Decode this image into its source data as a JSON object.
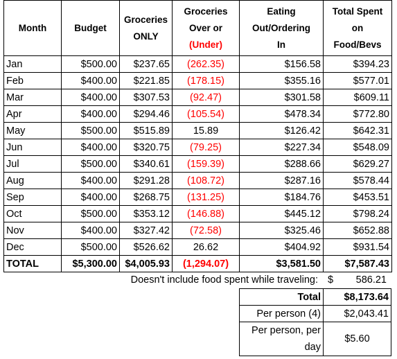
{
  "header": {
    "columns": [
      [
        "Month"
      ],
      [
        "Budget"
      ],
      [
        "Groceries",
        "ONLY"
      ],
      [
        "Groceries",
        "Over or",
        "(Under)"
      ],
      [
        "Eating",
        "Out/Ordering",
        "In"
      ],
      [
        "Total Spent",
        "on",
        "Food/Bevs"
      ]
    ]
  },
  "table": {
    "rows": [
      [
        "Jan",
        "$500.00",
        "$237.65",
        "(262.35)",
        "$156.58",
        "$394.23"
      ],
      [
        "Feb",
        "$400.00",
        "$221.85",
        "(178.15)",
        "$355.16",
        "$577.01"
      ],
      [
        "Mar",
        "$400.00",
        "$307.53",
        "(92.47)",
        "$301.58",
        "$609.11"
      ],
      [
        "Apr",
        "$400.00",
        "$294.46",
        "(105.54)",
        "$478.34",
        "$772.80"
      ],
      [
        "May",
        "$500.00",
        "$515.89",
        "15.89",
        "$126.42",
        "$642.31"
      ],
      [
        "Jun",
        "$400.00",
        "$320.75",
        "(79.25)",
        "$227.34",
        "$548.09"
      ],
      [
        "Jul",
        "$500.00",
        "$340.61",
        "(159.39)",
        "$288.66",
        "$629.27"
      ],
      [
        "Aug",
        "$400.00",
        "$291.28",
        "(108.72)",
        "$287.16",
        "$578.44"
      ],
      [
        "Sep",
        "$400.00",
        "$268.75",
        "(131.25)",
        "$184.76",
        "$453.51"
      ],
      [
        "Oct",
        "$500.00",
        "$353.12",
        "(146.88)",
        "$445.12",
        "$798.24"
      ],
      [
        "Nov",
        "$400.00",
        "$327.42",
        "(72.58)",
        "$325.46",
        "$652.88"
      ],
      [
        "Dec",
        "$500.00",
        "$526.62",
        "26.62",
        "$404.92",
        "$931.54"
      ]
    ],
    "total": [
      "TOTAL",
      "$5,300.00",
      "$4,005.93",
      "(1,294.07)",
      "$3,581.50",
      "$7,587.43"
    ]
  },
  "note": {
    "text": "Doesn't include food spent while traveling:",
    "currency": "$",
    "amount": "586.21"
  },
  "summary": [
    {
      "label": "Total",
      "value": "$8,173.64"
    },
    {
      "label": "Per person (4)",
      "value": "$2,043.41"
    },
    {
      "label": "Per person, per day",
      "value": "$5.60"
    }
  ]
}
